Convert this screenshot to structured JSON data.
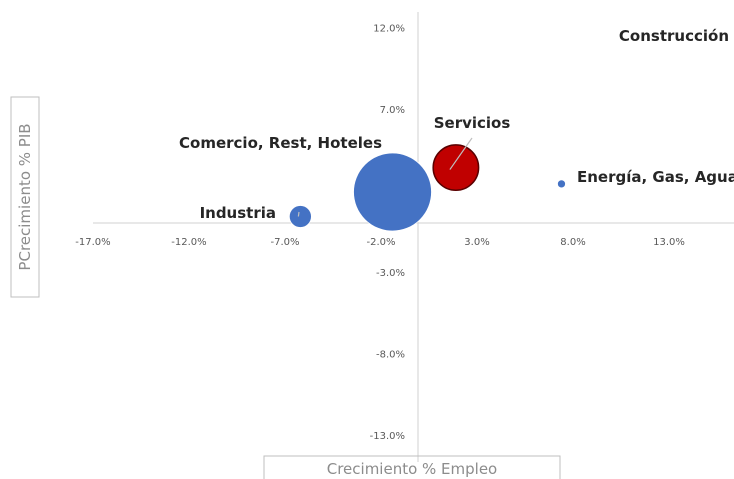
{
  "chart_data": {
    "type": "bubble",
    "xlabel": "Crecimiento % Empleo",
    "ylabel": "PCrecimiento % PIB",
    "xlim": [
      -17.0,
      17.0
    ],
    "ylim": [
      -13.0,
      13.0
    ],
    "x_ticks": [
      "-17.0%",
      "-12.0%",
      "-7.0%",
      "-2.0%",
      "3.0%",
      "8.0%",
      "13.0%"
    ],
    "x_tick_values": [
      -17,
      -12,
      -7,
      -2,
      3,
      8,
      13
    ],
    "y_ticks": [
      "12.0%",
      "7.0%",
      "2.0%",
      "-3.0%",
      "-8.0%",
      "-13.0%"
    ],
    "y_tick_values": [
      12,
      7,
      2,
      -3,
      -8,
      -13
    ],
    "grid": false,
    "legend": "none",
    "points": [
      {
        "label": "Industria",
        "x": -6.2,
        "y": 0.4,
        "size": 0.45,
        "color": "#4472c4"
      },
      {
        "label": "Comercio, Rest, Hoteles",
        "x": -1.4,
        "y": 1.9,
        "size": 5.6,
        "color": "#4472c4"
      },
      {
        "label": "Servicios",
        "x": 1.9,
        "y": 3.4,
        "size": 1.9,
        "color": "#c00000"
      },
      {
        "label": "Energía, Gas, Agua",
        "x": 7.4,
        "y": 2.4,
        "size": 0.06,
        "color": "#4472c4"
      },
      {
        "label": "Construcción",
        "x": 16.8,
        "y": 12.6,
        "size": 0.03,
        "color": "#4472c4"
      }
    ]
  }
}
